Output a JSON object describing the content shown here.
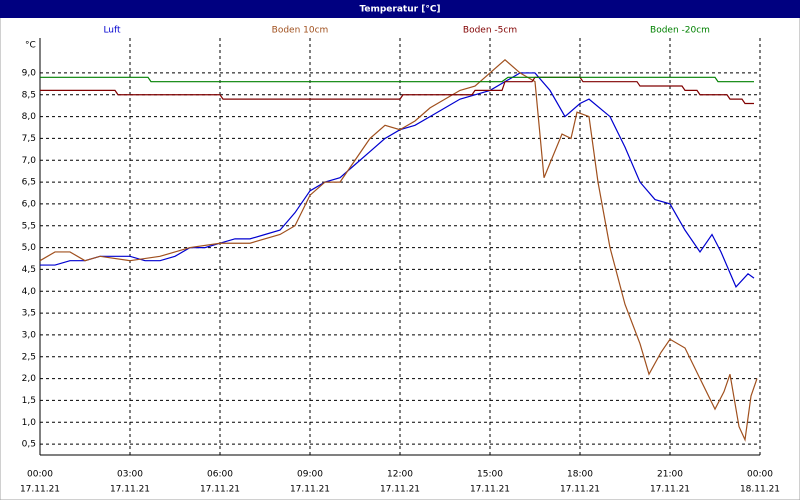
{
  "chart_data": {
    "type": "line",
    "title": "Temperatur [°C]",
    "y_unit": "°C",
    "xlim": [
      0,
      24
    ],
    "ylim": [
      0.25,
      9.8
    ],
    "grid": true,
    "xticks": [
      {
        "value": 0,
        "label": "00:00"
      },
      {
        "value": 3,
        "label": "03:00"
      },
      {
        "value": 6,
        "label": "06:00"
      },
      {
        "value": 9,
        "label": "09:00"
      },
      {
        "value": 12,
        "label": "12:00"
      },
      {
        "value": 15,
        "label": "15:00"
      },
      {
        "value": 18,
        "label": "18:00"
      },
      {
        "value": 21,
        "label": "21:00"
      },
      {
        "value": 24,
        "label": "00:00"
      }
    ],
    "xtick_dates": [
      "17.11.21",
      "17.11.21",
      "17.11.21",
      "17.11.21",
      "17.11.21",
      "17.11.21",
      "17.11.21",
      "17.11.21",
      "18.11.21"
    ],
    "yticks": [
      {
        "value": 0.5,
        "label": "0,5"
      },
      {
        "value": 1,
        "label": "1,0"
      },
      {
        "value": 1.5,
        "label": "1,5"
      },
      {
        "value": 2,
        "label": "2,0"
      },
      {
        "value": 2.5,
        "label": "2,5"
      },
      {
        "value": 3,
        "label": "3,0"
      },
      {
        "value": 3.5,
        "label": "3,5"
      },
      {
        "value": 4,
        "label": "4,0"
      },
      {
        "value": 4.5,
        "label": "4,5"
      },
      {
        "value": 5,
        "label": "5,0"
      },
      {
        "value": 5.5,
        "label": "5,5"
      },
      {
        "value": 6,
        "label": "6,0"
      },
      {
        "value": 6.5,
        "label": "6,5"
      },
      {
        "value": 7,
        "label": "7,0"
      },
      {
        "value": 7.5,
        "label": "7,5"
      },
      {
        "value": 8,
        "label": "8,0"
      },
      {
        "value": 8.5,
        "label": "8,5"
      },
      {
        "value": 9,
        "label": "9,0"
      }
    ],
    "series": [
      {
        "name": "Luft",
        "color": "#0000d0",
        "x": [
          0,
          0.5,
          1,
          1.5,
          2,
          2.5,
          3,
          3.5,
          4,
          4.5,
          5,
          5.5,
          6,
          6.5,
          7,
          7.5,
          8,
          8.5,
          9,
          9.5,
          10,
          10.5,
          11,
          11.5,
          12,
          12.5,
          13,
          13.5,
          14,
          14.5,
          15,
          15.5,
          16,
          16.5,
          17,
          17.5,
          18,
          18.3,
          19,
          19.5,
          20,
          20.5,
          21,
          21.5,
          22,
          22.4,
          22.7,
          23.2,
          23.6,
          23.8
        ],
        "values": [
          4.6,
          4.6,
          4.7,
          4.7,
          4.8,
          4.8,
          4.8,
          4.7,
          4.7,
          4.8,
          5.0,
          5.0,
          5.1,
          5.2,
          5.2,
          5.3,
          5.4,
          5.8,
          6.3,
          6.5,
          6.6,
          6.9,
          7.2,
          7.5,
          7.7,
          7.8,
          8.0,
          8.2,
          8.4,
          8.5,
          8.6,
          8.8,
          9.0,
          9.0,
          8.6,
          8.0,
          8.3,
          8.4,
          8.0,
          7.3,
          6.5,
          6.1,
          6.0,
          5.4,
          4.9,
          5.3,
          4.9,
          4.1,
          4.4,
          4.3
        ]
      },
      {
        "name": "Boden 10cm",
        "color": "#a0501e",
        "x": [
          0,
          0.5,
          1,
          1.5,
          2,
          3,
          4,
          4.5,
          5,
          6,
          7,
          8,
          8.5,
          9,
          9.5,
          10,
          10.5,
          11,
          11.5,
          12,
          12.5,
          13,
          13.5,
          14,
          14.5,
          15,
          15.5,
          16,
          16.5,
          16.8,
          17.4,
          17.7,
          17.9,
          18.3,
          18.6,
          19,
          19.5,
          20,
          20.3,
          20.7,
          21,
          21.5,
          22,
          22.5,
          22.8,
          23,
          23.3,
          23.5,
          23.7,
          23.9
        ],
        "values": [
          4.7,
          4.9,
          4.9,
          4.7,
          4.8,
          4.7,
          4.8,
          4.9,
          5.0,
          5.1,
          5.1,
          5.3,
          5.5,
          6.2,
          6.5,
          6.5,
          7.0,
          7.5,
          7.8,
          7.7,
          7.9,
          8.2,
          8.4,
          8.6,
          8.7,
          9.0,
          9.3,
          9.0,
          8.8,
          6.6,
          7.6,
          7.5,
          8.1,
          8.0,
          6.5,
          5.0,
          3.7,
          2.8,
          2.1,
          2.6,
          2.9,
          2.7,
          2.0,
          1.3,
          1.7,
          2.1,
          0.9,
          0.6,
          1.6,
          2.0
        ]
      },
      {
        "name": "Boden -5cm",
        "color": "#800000",
        "x": [
          0,
          2.5,
          2.6,
          6,
          6.1,
          12,
          12.1,
          14.4,
          14.5,
          15.4,
          15.5,
          16.4,
          16.5,
          18,
          18.1,
          19.9,
          20,
          21.4,
          21.5,
          21.9,
          22,
          22.9,
          23,
          23.4,
          23.5,
          23.8
        ],
        "values": [
          8.6,
          8.6,
          8.5,
          8.5,
          8.4,
          8.4,
          8.5,
          8.5,
          8.6,
          8.6,
          8.8,
          8.8,
          8.9,
          8.9,
          8.8,
          8.8,
          8.7,
          8.7,
          8.6,
          8.6,
          8.5,
          8.5,
          8.4,
          8.4,
          8.3,
          8.3
        ]
      },
      {
        "name": "Boden -20cm",
        "color": "#008000",
        "x": [
          0,
          3.6,
          3.7,
          15.4,
          15.6,
          22.5,
          22.6,
          23.8
        ],
        "values": [
          8.9,
          8.9,
          8.8,
          8.8,
          8.9,
          8.9,
          8.8,
          8.8
        ]
      }
    ]
  }
}
